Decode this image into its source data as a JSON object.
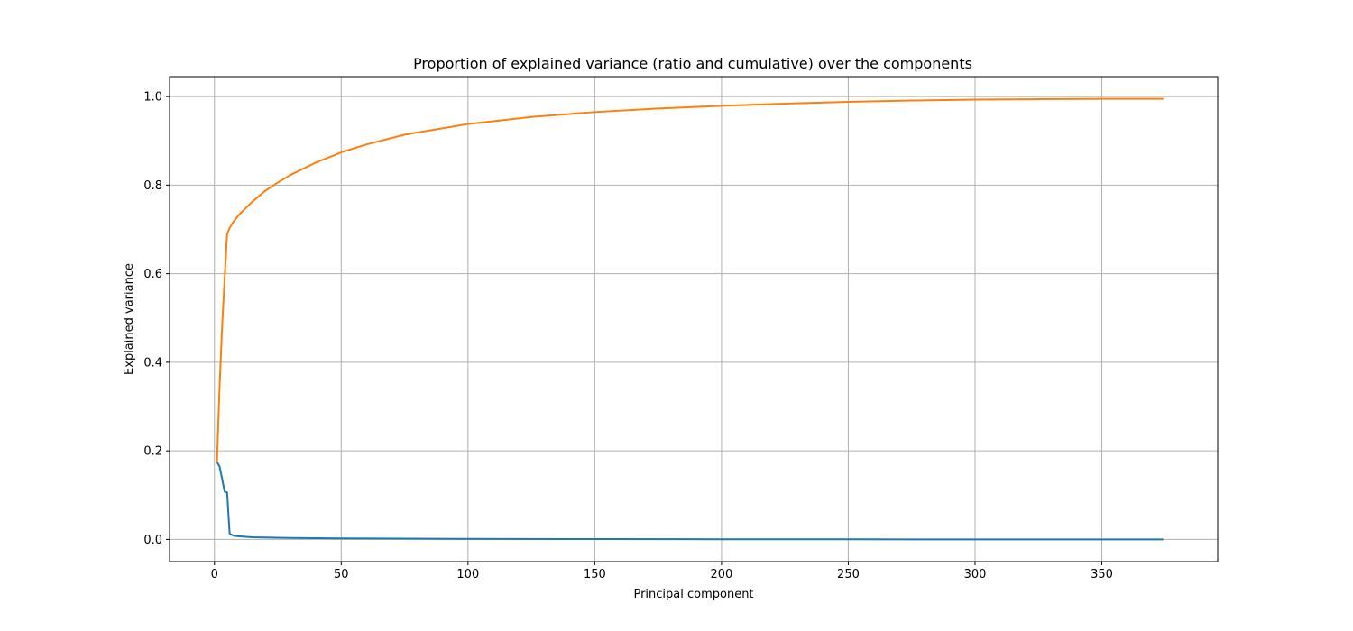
{
  "chart_data": {
    "type": "line",
    "title": "Proportion of explained variance (ratio and cumulative) over the components",
    "xlabel": "Principal component",
    "ylabel": "Explained variance",
    "xlim": [
      -17.7,
      395.7
    ],
    "ylim": [
      -0.05,
      1.045
    ],
    "xticks": [
      0,
      50,
      100,
      150,
      200,
      250,
      300,
      350
    ],
    "xtick_labels": [
      "0",
      "50",
      "100",
      "150",
      "200",
      "250",
      "300",
      "350"
    ],
    "yticks": [
      0.0,
      0.2,
      0.4,
      0.6,
      0.8,
      1.0
    ],
    "ytick_labels": [
      "0.0",
      "0.2",
      "0.4",
      "0.6",
      "0.8",
      "1.0"
    ],
    "grid": true,
    "series": [
      {
        "color": "#1f77b4",
        "x": [
          1,
          2,
          3,
          4,
          5,
          6,
          7,
          8,
          10,
          15,
          20,
          30,
          50,
          75,
          100,
          150,
          200,
          250,
          300,
          350,
          374
        ],
        "y": [
          0.175,
          0.165,
          0.138,
          0.108,
          0.106,
          0.013,
          0.01,
          0.008,
          0.007,
          0.005,
          0.0045,
          0.0035,
          0.0025,
          0.0018,
          0.0013,
          0.0008,
          0.0005,
          0.0003,
          0.0002,
          0.0001,
          0.0001
        ]
      },
      {
        "color": "#ff7f0e",
        "x": [
          1,
          2,
          3,
          4,
          5,
          6,
          7,
          8,
          10,
          15,
          20,
          25,
          30,
          40,
          50,
          60,
          75,
          100,
          125,
          150,
          175,
          200,
          225,
          250,
          275,
          300,
          325,
          350,
          374
        ],
        "y": [
          0.175,
          0.34,
          0.478,
          0.586,
          0.69,
          0.703,
          0.713,
          0.721,
          0.735,
          0.763,
          0.787,
          0.806,
          0.823,
          0.851,
          0.874,
          0.892,
          0.914,
          0.938,
          0.954,
          0.965,
          0.973,
          0.979,
          0.984,
          0.988,
          0.991,
          0.993,
          0.994,
          0.995,
          0.995
        ]
      }
    ]
  }
}
